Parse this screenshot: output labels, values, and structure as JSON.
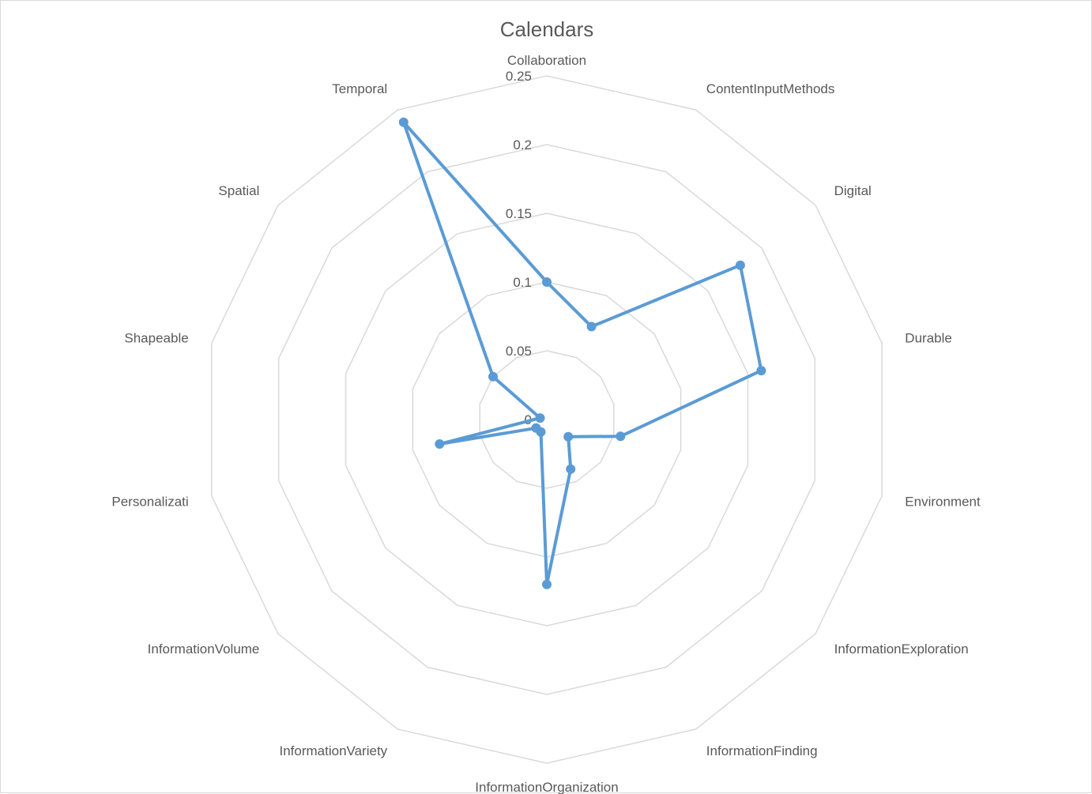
{
  "chart_data": {
    "type": "radar",
    "title": "Calendars",
    "categories": [
      "Collaboration",
      "ContentInputMethods",
      "Digital",
      "Durable",
      "Environment",
      "InformationExploration",
      "InformationFinding",
      "InformationOrganization",
      "InformationVariety",
      "InformationVolume",
      "Personalizati",
      "Shapeable",
      "Spatial",
      "Temporal"
    ],
    "series": [
      {
        "values": [
          0.1,
          0.075,
          0.18,
          0.16,
          0.055,
          0.02,
          0.04,
          0.12,
          0.01,
          0.01,
          0.08,
          0.005,
          0.05,
          0.24
        ]
      }
    ],
    "rlim": [
      0,
      0.25
    ],
    "ticks": [
      "0",
      "0.05",
      "0.1",
      "0.15",
      "0.2",
      "0.25"
    ],
    "gridlines": true,
    "colors": {
      "series": "#5b9bd5",
      "grid": "#d9d9d9",
      "text": "#595959"
    }
  }
}
